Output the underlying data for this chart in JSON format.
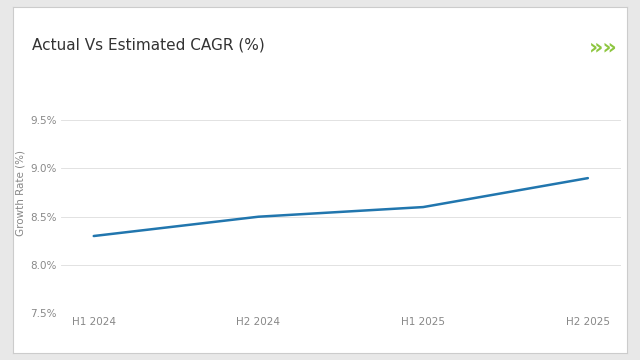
{
  "title": "Actual Vs Estimated CAGR (%)",
  "x_labels": [
    "H1 2024",
    "H2 2024",
    "H1 2025",
    "H2 2025"
  ],
  "x_values": [
    0,
    1,
    2,
    3
  ],
  "y_values": [
    8.3,
    8.5,
    8.6,
    8.9
  ],
  "ylabel": "Growth Rate (%)",
  "ylim": [
    7.5,
    10.0
  ],
  "yticks": [
    7.5,
    8.0,
    8.5,
    9.0,
    9.5
  ],
  "ytick_labels": [
    "7.5%",
    "8.0%",
    "8.5%",
    "9.0%",
    "9.5%"
  ],
  "line_color": "#2176ae",
  "line_width": 1.8,
  "outer_bg_color": "#e8e8e8",
  "header_bg_color": "#ffffff",
  "plot_bg_color": "#ffffff",
  "title_fontsize": 11,
  "axis_fontsize": 7.5,
  "tick_fontsize": 7.5,
  "green_line_color": "#8dc63f",
  "title_color": "#333333",
  "tick_color": "#888888",
  "chevron_color": "#8dc63f",
  "chevron_text": "»»",
  "grid_color": "#dddddd",
  "border_color": "#cccccc"
}
